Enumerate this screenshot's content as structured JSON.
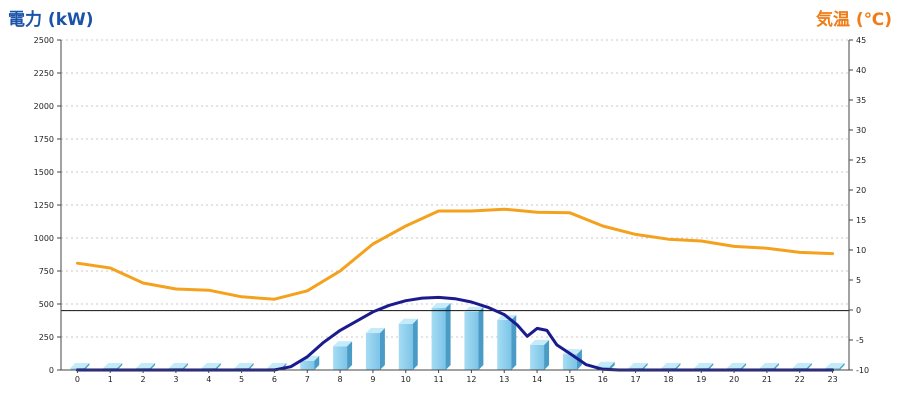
{
  "chart_data": {
    "type": "bar",
    "title": "",
    "ylabel": "電力 (kW)",
    "y2label": "気温 (℃)",
    "categories": [
      "0",
      "1",
      "2",
      "3",
      "4",
      "5",
      "6",
      "7",
      "8",
      "9",
      "10",
      "11",
      "12",
      "13",
      "14",
      "15",
      "16",
      "17",
      "18",
      "19",
      "20",
      "21",
      "22",
      "23"
    ],
    "ylim": [
      0,
      2500
    ],
    "y2lim": [
      -10,
      45
    ],
    "yticks": [
      0,
      250,
      500,
      750,
      1000,
      1250,
      1500,
      1750,
      2000,
      2250,
      2500
    ],
    "y2ticks": [
      -10,
      -5,
      0,
      5,
      10,
      15,
      20,
      25,
      30,
      35,
      40,
      45
    ],
    "grid": true,
    "reference_line": 450,
    "series": [
      {
        "kind": "bar",
        "axis": "left",
        "color": "#8fd0ee",
        "values": [
          15,
          15,
          15,
          15,
          15,
          15,
          15,
          70,
          180,
          280,
          350,
          470,
          440,
          380,
          190,
          120,
          25,
          15,
          15,
          15,
          15,
          15,
          15,
          15
        ]
      },
      {
        "kind": "line",
        "axis": "left",
        "color": "#1b1b8e",
        "x": [
          0,
          1,
          2,
          3,
          4,
          5,
          6,
          6.5,
          7,
          7.5,
          8,
          8.5,
          9,
          9.5,
          10,
          10.5,
          11,
          11.5,
          12,
          12.5,
          13,
          13.4,
          13.7,
          14,
          14.3,
          14.6,
          15,
          15.5,
          16,
          16.5,
          17,
          18,
          19,
          20,
          21,
          22,
          23
        ],
        "values": [
          0,
          0,
          0,
          0,
          0,
          0,
          0,
          25,
          100,
          210,
          300,
          370,
          440,
          490,
          525,
          545,
          550,
          540,
          515,
          475,
          420,
          340,
          255,
          315,
          300,
          190,
          125,
          40,
          5,
          0,
          0,
          0,
          0,
          0,
          0,
          0,
          0
        ]
      },
      {
        "kind": "line",
        "axis": "right",
        "color": "#f4a11d",
        "values": [
          7.8,
          7,
          4.5,
          3.5,
          3.3,
          2.2,
          1.8,
          3.2,
          6.5,
          11,
          14,
          16.5,
          16.5,
          16.8,
          16.3,
          16.2,
          14,
          12.6,
          11.8,
          11.5,
          10.6,
          10.3,
          9.6,
          9.4
        ]
      }
    ]
  }
}
